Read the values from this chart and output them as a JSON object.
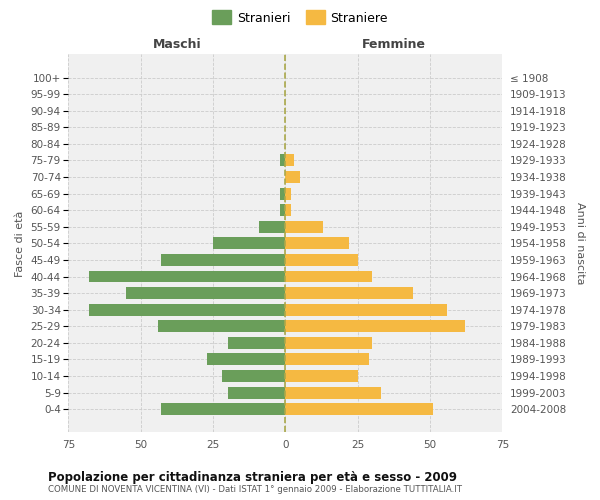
{
  "age_groups": [
    "100+",
    "95-99",
    "90-94",
    "85-89",
    "80-84",
    "75-79",
    "70-74",
    "65-69",
    "60-64",
    "55-59",
    "50-54",
    "45-49",
    "40-44",
    "35-39",
    "30-34",
    "25-29",
    "20-24",
    "15-19",
    "10-14",
    "5-9",
    "0-4"
  ],
  "birth_years": [
    "≤ 1908",
    "1909-1913",
    "1914-1918",
    "1919-1923",
    "1924-1928",
    "1929-1933",
    "1934-1938",
    "1939-1943",
    "1944-1948",
    "1949-1953",
    "1954-1958",
    "1959-1963",
    "1964-1968",
    "1969-1973",
    "1974-1978",
    "1979-1983",
    "1984-1988",
    "1989-1993",
    "1994-1998",
    "1999-2003",
    "2004-2008"
  ],
  "males": [
    0,
    0,
    0,
    0,
    0,
    2,
    0,
    2,
    2,
    9,
    25,
    43,
    68,
    55,
    68,
    44,
    20,
    27,
    22,
    20,
    43
  ],
  "females": [
    0,
    0,
    0,
    0,
    0,
    3,
    5,
    2,
    2,
    13,
    22,
    25,
    30,
    44,
    56,
    62,
    30,
    29,
    25,
    33,
    51
  ],
  "male_color": "#6a9e5a",
  "female_color": "#f5b942",
  "background_color": "#f0f0f0",
  "title": "Popolazione per cittadinanza straniera per età e sesso - 2009",
  "subtitle": "COMUNE DI NOVENTA VICENTINA (VI) - Dati ISTAT 1° gennaio 2009 - Elaborazione TUTTITALIA.IT",
  "xlabel_left": "Maschi",
  "xlabel_right": "Femmine",
  "ylabel_left": "Fasce di età",
  "ylabel_right": "Anni di nascita",
  "legend_male": "Stranieri",
  "legend_female": "Straniere",
  "xlim": 75,
  "grid_color": "#cccccc"
}
